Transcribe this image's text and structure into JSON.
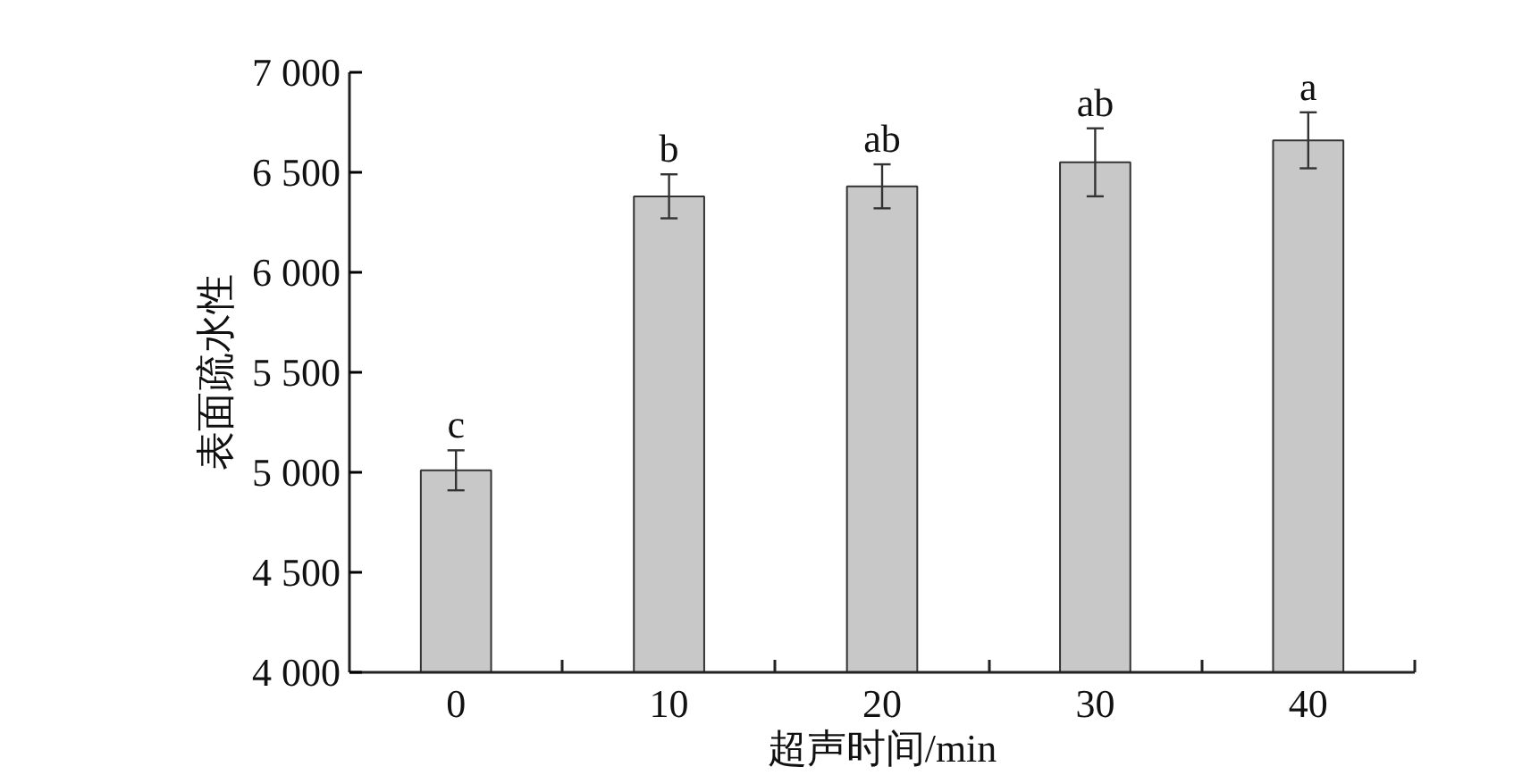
{
  "chart_data": {
    "type": "bar",
    "xlabel": "超声时间/min",
    "ylabel": "表面疏水性",
    "categories": [
      "0",
      "10",
      "20",
      "30",
      "40"
    ],
    "values": [
      5010,
      6380,
      6430,
      6550,
      6660
    ],
    "errors": [
      100,
      110,
      110,
      170,
      140
    ],
    "color": "#c8c8c8",
    "ylim": [
      4000,
      7000
    ],
    "yticks": [
      {
        "value": 4000,
        "label": "4 000"
      },
      {
        "value": 4500,
        "label": "4 500"
      },
      {
        "value": 5000,
        "label": "5 000"
      },
      {
        "value": 5500,
        "label": "5 500"
      },
      {
        "value": 6000,
        "label": "6 000"
      },
      {
        "value": 6500,
        "label": "6 500"
      },
      {
        "value": 7000,
        "label": "7 000"
      }
    ],
    "annotations": [
      {
        "text": "c",
        "x": "0",
        "y": 5110
      },
      {
        "text": "b",
        "x": "10",
        "y": 6490
      },
      {
        "text": "ab",
        "x": "20",
        "y": 6540
      },
      {
        "text": "ab",
        "x": "30",
        "y": 6720
      },
      {
        "text": "a",
        "x": "40",
        "y": 6800
      }
    ],
    "grid": false
  }
}
